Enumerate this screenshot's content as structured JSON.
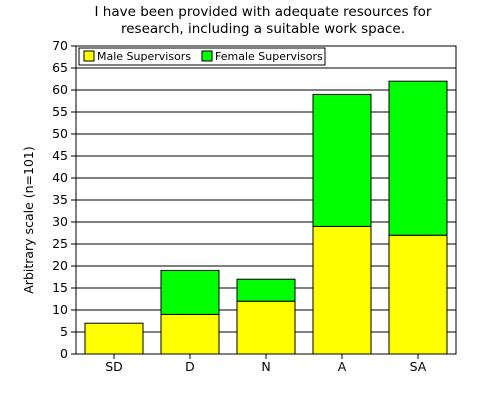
{
  "chart_data": {
    "type": "bar",
    "stacked": true,
    "title": "I have been provided with adequate resources for\nresearch, including a suitable work space.",
    "xlabel": "",
    "ylabel": "Arbitrary scale (n=101)",
    "ylim": [
      0,
      70
    ],
    "ytick_step": 5,
    "grid": true,
    "legend_position": "top-left",
    "categories": [
      "SD",
      "D",
      "N",
      "A",
      "SA"
    ],
    "series": [
      {
        "name": "Male Supervisors",
        "color": "#ffff00",
        "values": [
          7,
          9,
          12,
          29,
          27
        ]
      },
      {
        "name": "Female Supervisors",
        "color": "#00ff00",
        "values": [
          0,
          10,
          5,
          30,
          35
        ]
      }
    ]
  }
}
